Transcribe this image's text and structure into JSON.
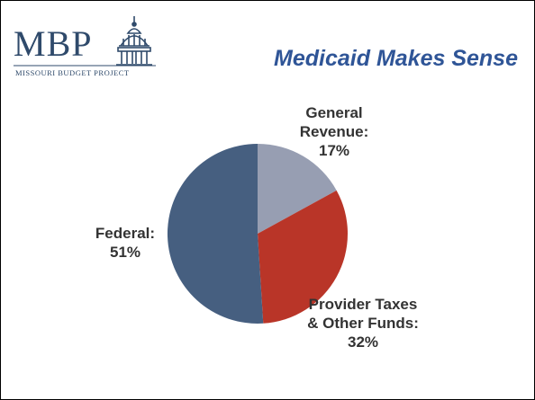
{
  "logo": {
    "letters": "MBP",
    "subtitle": "MISSOURI BUDGET PROJECT",
    "icon": "capitol-dome-icon",
    "color": "#2f4a6b"
  },
  "slide": {
    "title": "Medicaid Makes Sense",
    "title_color": "#2f5597"
  },
  "chart_data": {
    "type": "pie",
    "title": "",
    "start_angle_deg": 0,
    "direction": "clockwise",
    "slices": [
      {
        "name": "General Revenue",
        "value": 17,
        "label_lines": [
          "General",
          "Revenue:",
          "17%"
        ],
        "color": "#979eb2"
      },
      {
        "name": "Provider Taxes & Other Funds",
        "value": 32,
        "label_lines": [
          "Provider Taxes",
          "& Other Funds:",
          "32%"
        ],
        "color": "#b93528"
      },
      {
        "name": "Federal",
        "value": 51,
        "label_lines": [
          "Federal:",
          "51%"
        ],
        "color": "#465f80"
      }
    ]
  }
}
